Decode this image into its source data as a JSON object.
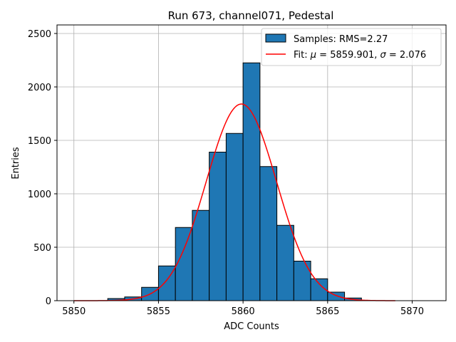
{
  "chart_data": {
    "type": "bar",
    "title": "Run 673, channel071, Pedestal",
    "xlabel": "ADC Counts",
    "ylabel": "Entries",
    "xlim": [
      5849,
      5872
    ],
    "ylim": [
      0,
      2580
    ],
    "xticks": [
      5850,
      5855,
      5860,
      5865,
      5870
    ],
    "yticks": [
      0,
      500,
      1000,
      1500,
      2000,
      2500
    ],
    "grid": true,
    "legend_position": "top-right",
    "histogram": {
      "name": "Samples: RMS=2.27",
      "bin_edges": [
        5850,
        5851,
        5852,
        5853,
        5854,
        5855,
        5856,
        5857,
        5858,
        5859,
        5860,
        5861,
        5862,
        5863,
        5864,
        5865,
        5866,
        5867,
        5868,
        5869,
        5870,
        5871
      ],
      "counts": [
        0,
        0,
        20,
        35,
        125,
        325,
        685,
        845,
        1390,
        1565,
        2225,
        1255,
        705,
        370,
        205,
        80,
        25,
        0,
        0,
        0,
        0
      ],
      "fill_color": "#1f77b4",
      "edge_color": "#000000"
    },
    "fit": {
      "name": "Fit: μ = 5859.901, σ = 2.076",
      "name_prefix": "Fit: ",
      "mu_symbol": "μ",
      "mu_text": " = 5859.901, ",
      "sigma_symbol": "σ",
      "sigma_text": " = 2.076",
      "mu": 5859.901,
      "sigma": 2.076,
      "amplitude": 1840,
      "x_range": [
        5850,
        5869
      ],
      "color": "#ff0000"
    }
  }
}
